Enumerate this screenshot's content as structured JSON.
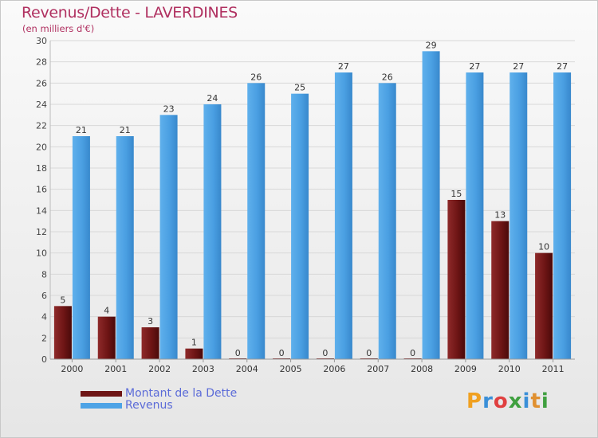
{
  "chart_data": {
    "type": "bar",
    "title": "Revenus/Dette - LAVERDINES",
    "subtitle": "(en milliers d'€)",
    "xlabel": "",
    "ylabel": "",
    "ylim": [
      0,
      30
    ],
    "yticks": [
      0,
      2,
      4,
      6,
      8,
      10,
      12,
      14,
      16,
      18,
      20,
      22,
      24,
      26,
      28,
      30
    ],
    "grid": true,
    "legend_position": "bottom-left",
    "categories": [
      "2000",
      "2001",
      "2002",
      "2003",
      "2004",
      "2005",
      "2006",
      "2007",
      "2008",
      "2009",
      "2010",
      "2011"
    ],
    "series": [
      {
        "name": "Montant de la Dette",
        "color": "#7a1f1f",
        "values": [
          5,
          4,
          3,
          1,
          0,
          0,
          0,
          0,
          0,
          15,
          13,
          10
        ]
      },
      {
        "name": "Revenus",
        "color": "#4da3e6",
        "values": [
          21,
          21,
          23,
          24,
          26,
          25,
          27,
          26,
          29,
          27,
          27,
          27
        ]
      }
    ]
  },
  "legend": {
    "dette_label": "Montant de la Dette",
    "revenus_label": "Revenus"
  },
  "logo": {
    "letters": [
      "P",
      "r",
      "o",
      "x",
      "i",
      "t",
      "i"
    ],
    "colors": [
      "#f0a020",
      "#3a8fd8",
      "#e04040",
      "#40a040",
      "#3a8fd8",
      "#e09030",
      "#40a040"
    ]
  }
}
